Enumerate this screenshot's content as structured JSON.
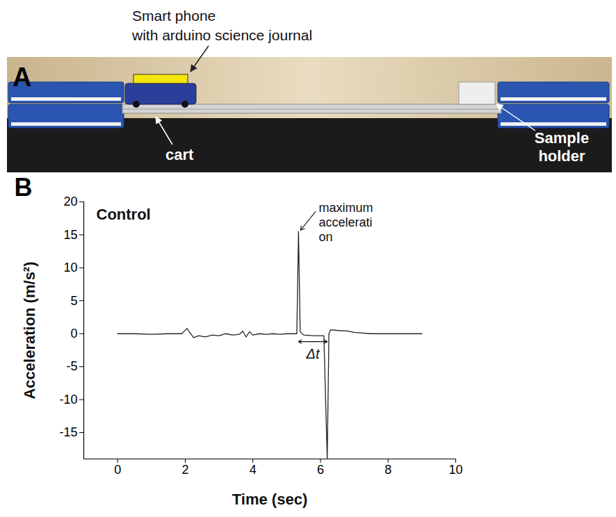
{
  "photo": {
    "panel": "A",
    "phone_label": [
      "Smart phone",
      "with arduino science journal"
    ],
    "cart_label": "cart",
    "sample_holder_label": [
      "Sample",
      "holder"
    ]
  },
  "chart_data": {
    "type": "line",
    "panel": "B",
    "title": "Control",
    "xlabel": "Time (sec)",
    "ylabel": "Acceleration (m/s²)",
    "x": [
      0,
      0.5,
      1,
      1.5,
      1.9,
      2.05,
      2.15,
      2.25,
      2.4,
      2.6,
      2.8,
      3.0,
      3.2,
      3.4,
      3.6,
      3.7,
      3.8,
      3.9,
      4.0,
      4.2,
      4.4,
      4.6,
      4.8,
      5.0,
      5.3,
      5.35,
      5.4,
      5.5,
      5.8,
      6.1,
      6.2,
      6.25,
      6.3,
      6.5,
      6.8,
      7.0,
      7.5,
      8,
      8.5,
      9
    ],
    "values": [
      0,
      0,
      -0.1,
      0,
      0,
      0.8,
      0.1,
      -0.6,
      -0.3,
      -0.5,
      -0.2,
      -0.3,
      0,
      -0.2,
      -0.1,
      0.4,
      -0.5,
      0.3,
      -0.2,
      0,
      -0.1,
      0,
      -0.1,
      0,
      0,
      15.5,
      0.3,
      -0.2,
      -0.3,
      -0.3,
      -19,
      0,
      0.6,
      0.5,
      0.4,
      0.2,
      0,
      0,
      0,
      0
    ],
    "color": "#222222",
    "xlim": [
      -1,
      10
    ],
    "xticks": [
      0,
      2,
      4,
      6,
      8,
      10
    ],
    "ylim": [
      -19,
      20
    ],
    "yticks": [
      -15,
      -10,
      -5,
      0,
      5,
      10,
      15,
      20
    ],
    "peak_label": [
      "maximum",
      "accelerati",
      "on"
    ],
    "delta_t": {
      "label": "Δt",
      "from": 5.35,
      "to": 6.2,
      "at": -1.2
    }
  }
}
